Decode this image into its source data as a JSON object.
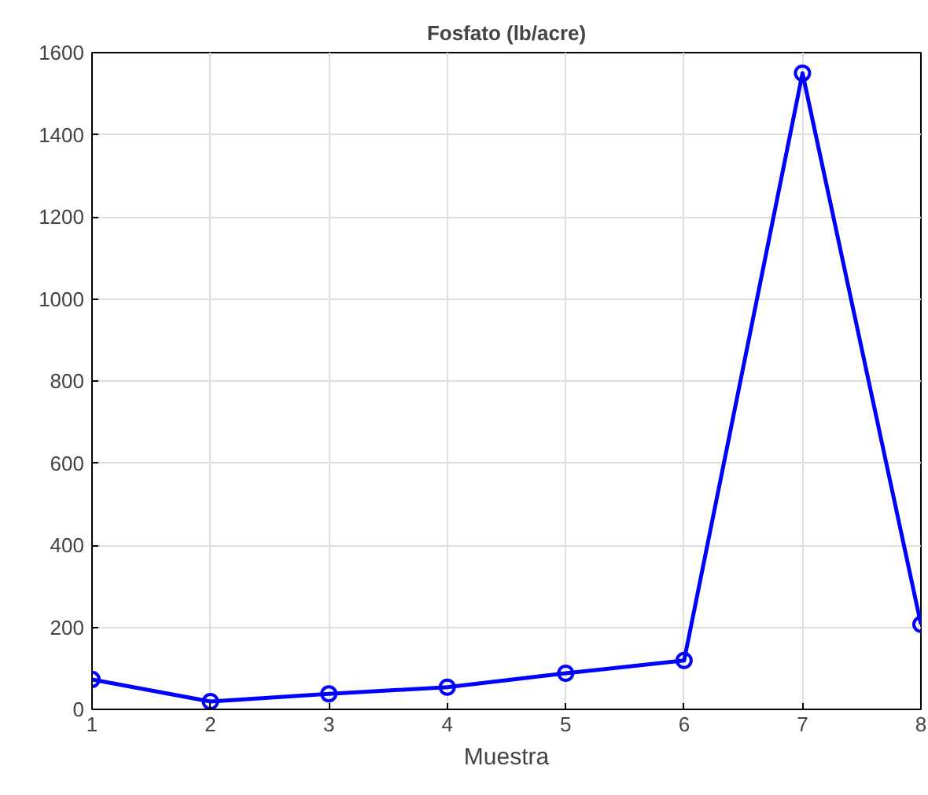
{
  "chart_data": {
    "type": "line",
    "title": "Fosfato (lb/acre)",
    "xlabel": "Muestra",
    "x": [
      1,
      2,
      3,
      4,
      5,
      6,
      7,
      8
    ],
    "series": [
      {
        "color": "#0000ff",
        "values": [
          73,
          19,
          38,
          54,
          88,
          119,
          1550,
          207
        ]
      }
    ],
    "xlim": [
      1,
      8
    ],
    "xticks": [
      1,
      2,
      3,
      4,
      5,
      6,
      7,
      8
    ],
    "ylim": [
      0,
      1600
    ],
    "yticks": [
      0,
      200,
      400,
      600,
      800,
      1000,
      1200,
      1400,
      1600
    ],
    "grid": true,
    "marker": "circle",
    "line_style": "solid"
  }
}
